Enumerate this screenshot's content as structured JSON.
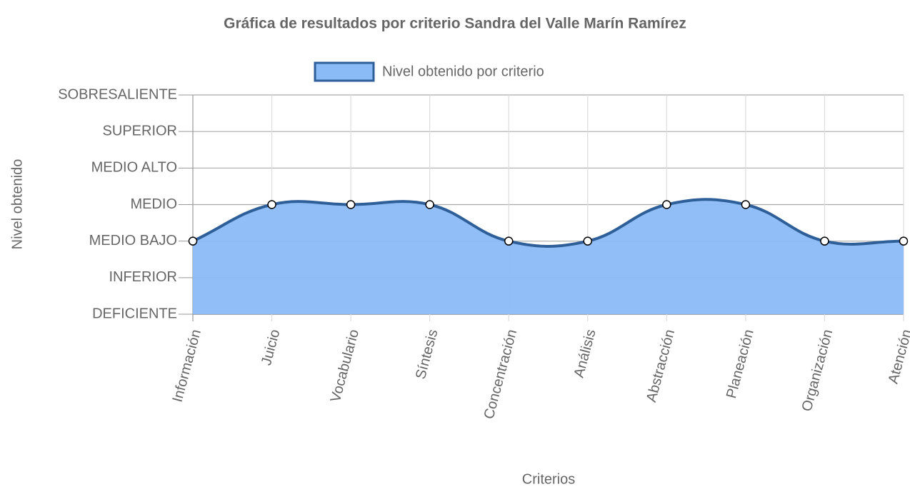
{
  "chart_data": {
    "type": "line",
    "title": "Gráfica de resultados por criterio Sandra del Valle Marín Ramírez",
    "x_label": "Criterios",
    "y_label": "Nivel obtenido",
    "categories": [
      "Información",
      "Juicio",
      "Vocabulario",
      "Síntesis",
      "Concentración",
      "Análisis",
      "Abstracción",
      "Planeación",
      "Organización",
      "Atención"
    ],
    "series": [
      {
        "name": "Nivel obtenido por criterio",
        "color": "#2f5f98",
        "fill_color": "#8bbbf6",
        "values": [
          2,
          3,
          3,
          3,
          2,
          2,
          3,
          3,
          2,
          2
        ]
      }
    ],
    "ylim": [
      0,
      6
    ],
    "yticks": [
      {
        "value": 0,
        "label": "DEFICIENTE"
      },
      {
        "value": 1,
        "label": "INFERIOR"
      },
      {
        "value": 2,
        "label": "MEDIO BAJO"
      },
      {
        "value": 3,
        "label": "MEDIO"
      },
      {
        "value": 4,
        "label": "MEDIO ALTO"
      },
      {
        "value": 5,
        "label": "SUPERIOR"
      },
      {
        "value": 6,
        "label": "SOBRESALIENTE"
      }
    ],
    "grid": true,
    "fill": true,
    "legend": "top"
  }
}
